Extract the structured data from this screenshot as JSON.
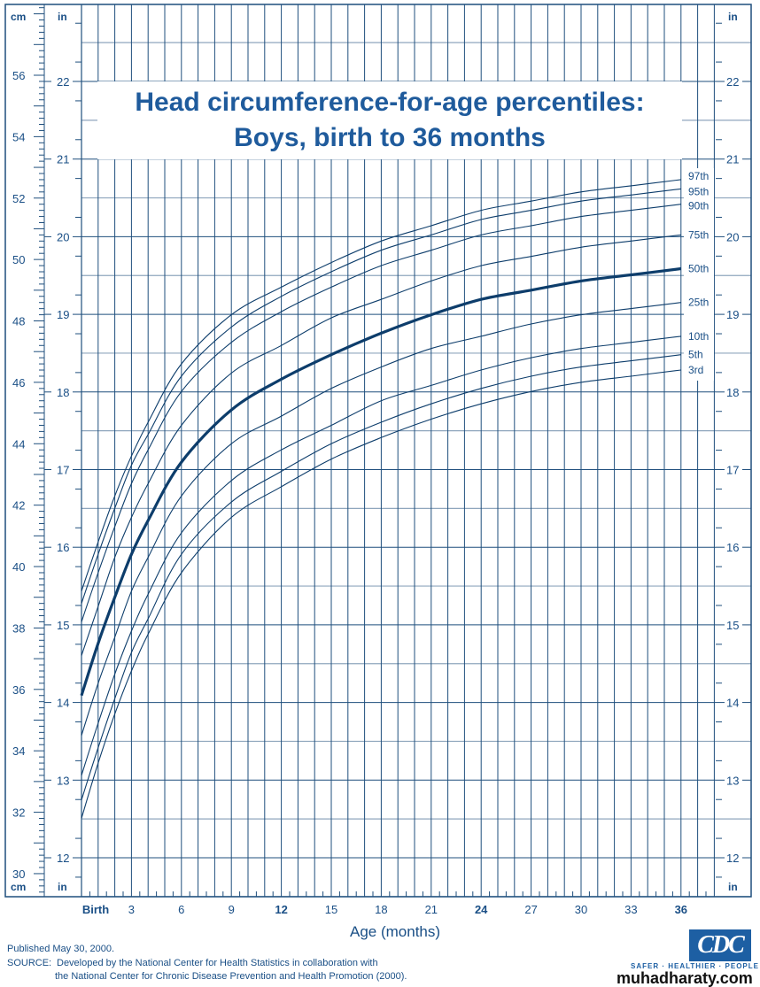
{
  "chart_data": {
    "type": "line",
    "title": "Head circumference-for-age percentiles:",
    "subtitle": "Boys, birth to 36 months",
    "xlabel": "Age (months)",
    "xlim": [
      0,
      36
    ],
    "x_tick_labels": [
      "Birth",
      "3",
      "6",
      "9",
      "12",
      "15",
      "18",
      "21",
      "24",
      "27",
      "30",
      "33",
      "36"
    ],
    "x_ticks": [
      0,
      3,
      6,
      9,
      12,
      15,
      18,
      21,
      24,
      27,
      30,
      33,
      36
    ],
    "bold_ticks": [
      0,
      12,
      24,
      36
    ],
    "y_left_unit": "cm",
    "y_left_ticks": [
      30,
      32,
      34,
      36,
      38,
      40,
      42,
      44,
      46,
      48,
      50,
      52,
      54,
      56
    ],
    "y_right_unit": "in",
    "y_in_ticks": [
      12,
      13,
      14,
      15,
      16,
      17,
      18,
      19,
      20,
      21,
      22
    ],
    "ylim_cm": [
      29.3,
      58.4
    ],
    "grid": true,
    "x": [
      0,
      1,
      2,
      3,
      4,
      6,
      9,
      12,
      15,
      18,
      21,
      24,
      27,
      30,
      33,
      36
    ],
    "series": [
      {
        "name": "3rd",
        "values": [
          31.8,
          33.6,
          35.2,
          36.6,
          37.8,
          39.8,
          41.6,
          42.6,
          43.5,
          44.2,
          44.8,
          45.3,
          45.7,
          46.0,
          46.2,
          46.4
        ]
      },
      {
        "name": "5th",
        "values": [
          32.4,
          34.1,
          35.7,
          37.2,
          38.3,
          40.4,
          42.1,
          43.1,
          44.0,
          44.7,
          45.3,
          45.8,
          46.2,
          46.5,
          46.7,
          46.9
        ]
      },
      {
        "name": "10th",
        "values": [
          33.2,
          34.9,
          36.5,
          37.9,
          39.1,
          41.1,
          42.8,
          43.8,
          44.6,
          45.4,
          45.9,
          46.4,
          46.8,
          47.1,
          47.3,
          47.5
        ]
      },
      {
        "name": "25th",
        "values": [
          34.5,
          36.2,
          37.7,
          39.2,
          40.3,
          42.3,
          44.0,
          44.9,
          45.8,
          46.5,
          47.1,
          47.5,
          47.9,
          48.2,
          48.4,
          48.6
        ]
      },
      {
        "name": "50th",
        "values": [
          35.8,
          37.5,
          39.0,
          40.4,
          41.5,
          43.4,
          45.1,
          46.1,
          46.9,
          47.6,
          48.2,
          48.7,
          49.0,
          49.3,
          49.5,
          49.7
        ]
      },
      {
        "name": "75th",
        "values": [
          37.1,
          38.7,
          40.3,
          41.6,
          42.7,
          44.6,
          46.3,
          47.2,
          48.1,
          48.7,
          49.3,
          49.8,
          50.1,
          50.4,
          50.6,
          50.8
        ]
      },
      {
        "name": "90th",
        "values": [
          38.2,
          39.8,
          41.3,
          42.7,
          43.8,
          45.7,
          47.3,
          48.3,
          49.1,
          49.8,
          50.3,
          50.8,
          51.1,
          51.4,
          51.6,
          51.8
        ]
      },
      {
        "name": "95th",
        "values": [
          38.8,
          40.4,
          41.9,
          43.3,
          44.3,
          46.2,
          47.8,
          48.8,
          49.6,
          50.3,
          50.8,
          51.3,
          51.6,
          51.9,
          52.1,
          52.3
        ]
      },
      {
        "name": "97th",
        "values": [
          39.2,
          40.8,
          42.3,
          43.6,
          44.7,
          46.6,
          48.2,
          49.1,
          49.9,
          50.6,
          51.1,
          51.6,
          51.9,
          52.2,
          52.4,
          52.6
        ]
      }
    ],
    "emphasized_series": "50th",
    "colors": {
      "line": "#0d3d6b",
      "grid": "#1f4f7d",
      "grid_half": "#8fa6bd",
      "text": "#1a4f86",
      "title": "#1f5b9c"
    }
  },
  "footer": {
    "published": "Published May 30, 2000.",
    "source_label": "SOURCE:",
    "source_line1": "Developed by the National Center for Health Statistics in collaboration with",
    "source_line2": "the National Center for Chronic Disease Prevention and Health Promotion (2000)."
  },
  "logo": {
    "text": "CDC",
    "tagline": "SAFER · HEALTHIER · PEOPLE"
  },
  "watermark": "muhadharaty.com"
}
